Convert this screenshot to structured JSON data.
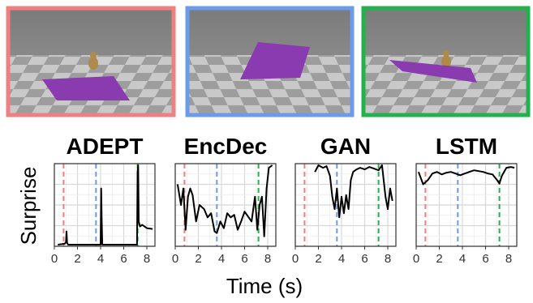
{
  "frame_colors": [
    "#f08080",
    "#6b9bea",
    "#22b14c"
  ],
  "scene_frames": [
    {
      "border": "#f08080",
      "has_toy": true,
      "plate": "flat"
    },
    {
      "border": "#6b9bea",
      "has_toy": false,
      "plate": "raised"
    },
    {
      "border": "#22b14c",
      "has_toy": true,
      "plate": "tilted"
    }
  ],
  "xlabel": "Time (s)",
  "ylabel": "Surprise",
  "chart_data": [
    {
      "type": "line",
      "title": "ADEPT",
      "xlim": [
        0,
        8.7
      ],
      "ylim": [
        0,
        1
      ],
      "xticks": [
        0,
        2,
        4,
        6,
        8
      ],
      "vlines": [
        {
          "x": 0.8,
          "color": "#f08080"
        },
        {
          "x": 3.6,
          "color": "#6b9bea"
        },
        {
          "x": 7.2,
          "color": "#22b14c"
        }
      ],
      "x": [
        0.3,
        0.9,
        1.0,
        1.05,
        1.1,
        1.2,
        1.6,
        2.5,
        3.5,
        3.9,
        4.0,
        4.05,
        4.1,
        4.15,
        4.2,
        5.0,
        6.0,
        7.0,
        7.15,
        7.2,
        7.25,
        7.3,
        7.4,
        7.6,
        8.0,
        8.5
      ],
      "y": [
        0.02,
        0.03,
        0.05,
        0.18,
        0.04,
        0.02,
        0.02,
        0.02,
        0.02,
        0.02,
        0.02,
        0.7,
        0.3,
        0.02,
        0.02,
        0.02,
        0.02,
        0.02,
        0.02,
        0.9,
        0.98,
        0.3,
        0.24,
        0.26,
        0.22,
        0.21
      ]
    },
    {
      "type": "line",
      "title": "EncDec",
      "xlim": [
        0,
        8.7
      ],
      "ylim": [
        0,
        1
      ],
      "xticks": [
        0,
        2,
        4,
        6,
        8
      ],
      "vlines": [
        {
          "x": 0.8,
          "color": "#f08080"
        },
        {
          "x": 3.6,
          "color": "#6b9bea"
        },
        {
          "x": 7.2,
          "color": "#22b14c"
        }
      ],
      "x": [
        0.2,
        0.5,
        0.7,
        0.9,
        1.1,
        1.3,
        1.5,
        1.8,
        2.1,
        2.5,
        2.8,
        3.1,
        3.4,
        3.6,
        3.9,
        4.2,
        4.5,
        4.8,
        5.1,
        5.4,
        5.7,
        6.0,
        6.3,
        6.6,
        6.9,
        7.1,
        7.3,
        7.5,
        7.7,
        7.9,
        8.1,
        8.4
      ],
      "y": [
        0.75,
        0.5,
        0.7,
        0.2,
        0.6,
        0.7,
        0.62,
        0.3,
        0.5,
        0.45,
        0.35,
        0.4,
        0.18,
        0.16,
        0.3,
        0.22,
        0.4,
        0.35,
        0.38,
        0.2,
        0.3,
        0.42,
        0.36,
        0.3,
        0.6,
        0.2,
        0.5,
        0.6,
        0.12,
        0.7,
        0.95,
        0.98
      ]
    },
    {
      "type": "line",
      "title": "GAN",
      "xlim": [
        0,
        8.7
      ],
      "ylim": [
        0,
        1
      ],
      "xticks": [
        0,
        2,
        4,
        6,
        8
      ],
      "vlines": [
        {
          "x": 0.8,
          "color": "#f08080"
        },
        {
          "x": 3.6,
          "color": "#6b9bea"
        },
        {
          "x": 7.2,
          "color": "#22b14c"
        }
      ],
      "x": [
        1.7,
        2.0,
        2.4,
        2.7,
        3.0,
        3.2,
        3.4,
        3.6,
        3.8,
        4.0,
        4.2,
        4.4,
        4.6,
        4.8,
        5.0,
        5.3,
        5.6,
        6.0,
        6.4,
        6.8,
        7.2,
        7.5,
        7.8,
        8.0,
        8.2,
        8.4
      ],
      "y": [
        0.9,
        0.98,
        0.95,
        0.97,
        0.85,
        0.6,
        0.45,
        0.7,
        0.35,
        0.6,
        0.4,
        0.62,
        0.45,
        0.8,
        0.9,
        0.93,
        0.95,
        0.93,
        0.96,
        0.94,
        0.92,
        0.98,
        0.6,
        0.45,
        0.7,
        0.55
      ]
    },
    {
      "type": "line",
      "title": "LSTM",
      "xlim": [
        0,
        8.7
      ],
      "ylim": [
        0,
        1
      ],
      "xticks": [
        0,
        2,
        4,
        6,
        8
      ],
      "vlines": [
        {
          "x": 0.8,
          "color": "#f08080"
        },
        {
          "x": 3.6,
          "color": "#6b9bea"
        },
        {
          "x": 7.2,
          "color": "#22b14c"
        }
      ],
      "x": [
        0.2,
        0.6,
        1.0,
        1.4,
        1.8,
        2.2,
        2.6,
        3.0,
        3.4,
        3.8,
        4.2,
        4.6,
        5.0,
        5.4,
        5.8,
        6.2,
        6.6,
        7.0,
        7.2,
        7.4,
        7.8,
        8.2,
        8.5
      ],
      "y": [
        0.9,
        0.75,
        0.8,
        0.88,
        0.9,
        0.87,
        0.89,
        0.9,
        0.88,
        0.86,
        0.88,
        0.9,
        0.92,
        0.91,
        0.9,
        0.88,
        0.87,
        0.8,
        0.76,
        0.85,
        0.95,
        0.96,
        0.95
      ]
    }
  ]
}
